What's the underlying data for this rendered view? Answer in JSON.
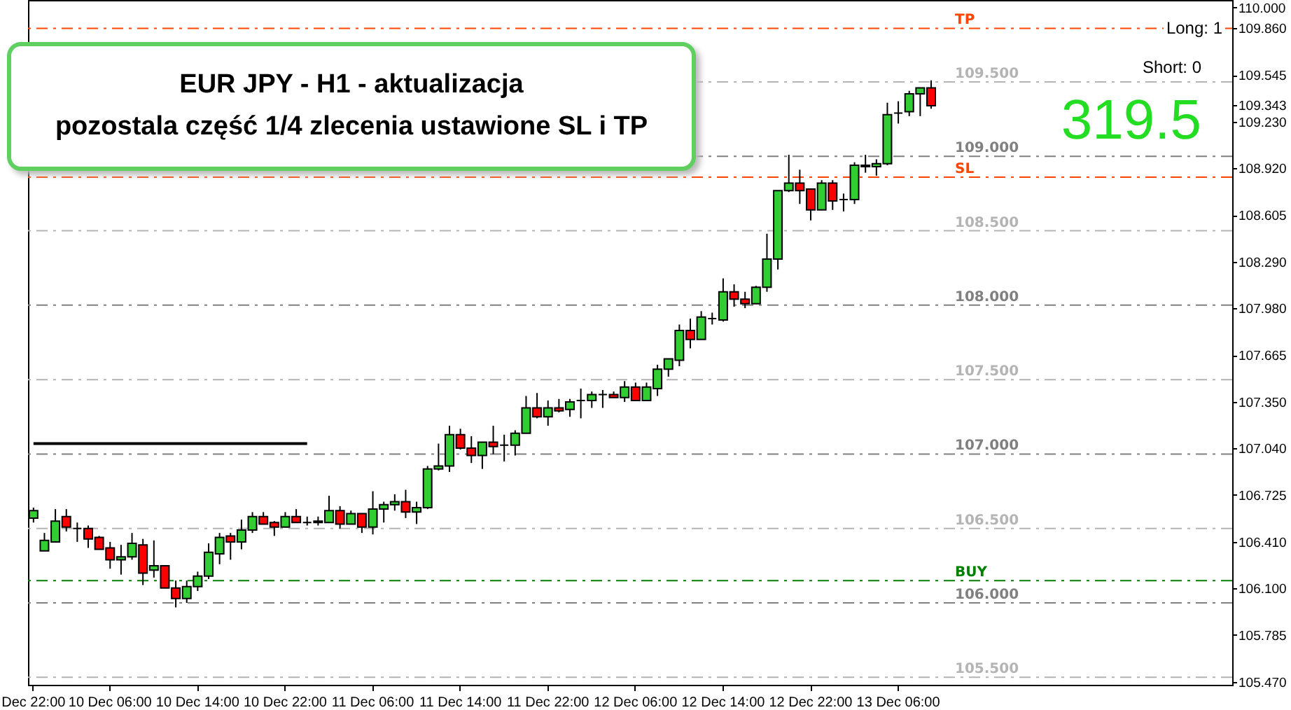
{
  "chart_data": {
    "type": "candlestick",
    "categories": [
      "Dec 22:00",
      null,
      null,
      null,
      null,
      null,
      null,
      "10 Dec 06:00",
      null,
      null,
      null,
      null,
      null,
      null,
      null,
      "10 Dec 14:00",
      null,
      null,
      null,
      null,
      null,
      null,
      null,
      "10 Dec 22:00",
      null,
      null,
      null,
      null,
      null,
      null,
      null,
      "11 Dec 06:00",
      null,
      null,
      null,
      null,
      null,
      null,
      null,
      "11 Dec 14:00",
      null,
      null,
      null,
      null,
      null,
      null,
      null,
      "11 Dec 22:00",
      null,
      null,
      null,
      null,
      null,
      null,
      null,
      "12 Dec 06:00",
      null,
      null,
      null,
      null,
      null,
      null,
      null,
      "12 Dec 14:00",
      null,
      null,
      null,
      null,
      null,
      null,
      null,
      "12 Dec 22:00",
      null,
      null,
      null,
      null,
      null,
      null,
      null,
      "13 Dec 06:00",
      null,
      null,
      null,
      null,
      null,
      null,
      null,
      null,
      null,
      null,
      null,
      null,
      null,
      null,
      null,
      null,
      null,
      null,
      null,
      null,
      null,
      null,
      null,
      null,
      null,
      null,
      null,
      null,
      null,
      null
    ],
    "ohlc": [
      [
        106.57,
        106.64,
        106.54,
        106.62
      ],
      [
        106.35,
        106.47,
        106.35,
        106.42
      ],
      [
        106.41,
        106.63,
        106.41,
        106.55
      ],
      [
        106.58,
        106.63,
        106.48,
        106.51
      ],
      [
        106.5,
        106.54,
        106.41,
        106.5
      ],
      [
        106.5,
        106.52,
        106.37,
        106.43
      ],
      [
        106.44,
        106.45,
        106.36,
        106.36
      ],
      [
        106.37,
        106.41,
        106.23,
        106.29
      ],
      [
        106.29,
        106.39,
        106.19,
        106.31
      ],
      [
        106.31,
        106.47,
        106.29,
        106.4
      ],
      [
        106.39,
        106.43,
        106.12,
        106.2
      ],
      [
        106.22,
        106.42,
        106.17,
        106.25
      ],
      [
        106.25,
        106.25,
        106.1,
        106.1
      ],
      [
        106.1,
        106.15,
        105.97,
        106.03
      ],
      [
        106.03,
        106.15,
        106.0,
        106.11
      ],
      [
        106.11,
        106.21,
        106.08,
        106.18
      ],
      [
        106.18,
        106.4,
        106.16,
        106.34
      ],
      [
        106.33,
        106.47,
        106.26,
        106.44
      ],
      [
        106.45,
        106.47,
        106.29,
        106.41
      ],
      [
        106.41,
        106.56,
        106.36,
        106.49
      ],
      [
        106.49,
        106.61,
        106.47,
        106.58
      ],
      [
        106.58,
        106.61,
        106.53,
        106.53
      ],
      [
        106.54,
        106.55,
        106.45,
        106.51
      ],
      [
        106.51,
        106.61,
        106.51,
        106.58
      ],
      [
        106.58,
        106.63,
        106.54,
        106.54
      ],
      [
        106.54,
        106.58,
        106.52,
        106.54
      ],
      [
        106.54,
        106.58,
        106.52,
        106.55
      ],
      [
        106.54,
        106.72,
        106.54,
        106.62
      ],
      [
        106.62,
        106.65,
        106.5,
        106.53
      ],
      [
        106.53,
        106.62,
        106.53,
        106.6
      ],
      [
        106.6,
        106.6,
        106.47,
        106.51
      ],
      [
        106.51,
        106.75,
        106.46,
        106.63
      ],
      [
        106.63,
        106.68,
        106.54,
        106.66
      ],
      [
        106.66,
        106.73,
        106.62,
        106.68
      ],
      [
        106.68,
        106.76,
        106.57,
        106.61
      ],
      [
        106.61,
        106.68,
        106.53,
        106.64
      ],
      [
        106.64,
        106.92,
        106.63,
        106.9
      ],
      [
        106.9,
        107.07,
        106.89,
        106.92
      ],
      [
        106.92,
        107.19,
        106.88,
        107.13
      ],
      [
        107.13,
        107.17,
        107.03,
        107.04
      ],
      [
        107.04,
        107.12,
        106.94,
        106.99
      ],
      [
        106.99,
        107.08,
        106.9,
        107.08
      ],
      [
        107.08,
        107.19,
        107.0,
        107.05
      ],
      [
        107.06,
        107.13,
        106.95,
        107.06
      ],
      [
        107.06,
        107.16,
        106.99,
        107.14
      ],
      [
        107.14,
        107.39,
        107.14,
        107.31
      ],
      [
        107.31,
        107.41,
        107.24,
        107.25
      ],
      [
        107.25,
        107.36,
        107.19,
        107.31
      ],
      [
        107.31,
        107.37,
        107.28,
        107.29
      ],
      [
        107.3,
        107.37,
        107.25,
        107.35
      ],
      [
        107.36,
        107.44,
        107.24,
        107.36
      ],
      [
        107.36,
        107.42,
        107.31,
        107.4
      ],
      [
        107.4,
        107.43,
        107.31,
        107.4
      ],
      [
        107.4,
        107.42,
        107.38,
        107.38
      ],
      [
        107.38,
        107.49,
        107.35,
        107.45
      ],
      [
        107.45,
        107.48,
        107.36,
        107.36
      ],
      [
        107.36,
        107.48,
        107.36,
        107.45
      ],
      [
        107.44,
        107.6,
        107.39,
        107.57
      ],
      [
        107.57,
        107.64,
        107.52,
        107.64
      ],
      [
        107.63,
        107.87,
        107.59,
        107.83
      ],
      [
        107.83,
        107.91,
        107.71,
        107.77
      ],
      [
        107.77,
        107.96,
        107.77,
        107.92
      ],
      [
        107.91,
        107.95,
        107.87,
        107.91
      ],
      [
        107.9,
        108.18,
        107.89,
        108.09
      ],
      [
        108.09,
        108.14,
        107.99,
        108.04
      ],
      [
        108.04,
        108.09,
        107.98,
        108.01
      ],
      [
        108.01,
        108.13,
        108.01,
        108.12
      ],
      [
        108.12,
        108.48,
        108.09,
        108.31
      ],
      [
        108.31,
        108.77,
        108.24,
        108.77
      ],
      [
        108.77,
        109.01,
        108.76,
        108.82
      ],
      [
        108.82,
        108.91,
        108.68,
        108.77
      ],
      [
        108.78,
        108.78,
        108.57,
        108.64
      ],
      [
        108.64,
        108.84,
        108.64,
        108.82
      ],
      [
        108.82,
        108.84,
        108.64,
        108.7
      ],
      [
        108.71,
        108.75,
        108.63,
        108.71
      ],
      [
        108.71,
        108.96,
        108.68,
        108.94
      ],
      [
        108.94,
        109.01,
        108.89,
        108.93
      ],
      [
        108.93,
        108.98,
        108.87,
        108.95
      ],
      [
        108.95,
        109.36,
        108.94,
        109.28
      ],
      [
        109.29,
        109.37,
        109.22,
        109.29
      ],
      [
        109.3,
        109.44,
        109.27,
        109.42
      ],
      [
        109.42,
        109.46,
        109.27,
        109.46
      ],
      [
        109.46,
        109.51,
        109.32,
        109.34
      ],
      null,
      null,
      null,
      null,
      null,
      null,
      null,
      null,
      null,
      null,
      null,
      null,
      null,
      null,
      null,
      null,
      null,
      null,
      null,
      null,
      null,
      null,
      null,
      null,
      null,
      null,
      null
    ],
    "colors": [
      "#32cd32",
      "#32cd32",
      "#32cd32",
      "#ff0000",
      "#000000",
      "#ff0000",
      "#ff0000",
      "#ff0000",
      "#32cd32",
      "#32cd32",
      "#ff0000",
      "#32cd32",
      "#ff0000",
      "#ff0000",
      "#32cd32",
      "#32cd32",
      "#32cd32",
      "#32cd32",
      "#ff0000",
      "#32cd32",
      "#32cd32",
      "#ff0000",
      "#ff0000",
      "#32cd32",
      "#ff0000",
      "#000000",
      "#32cd32",
      "#32cd32",
      "#ff0000",
      "#32cd32",
      "#ff0000",
      "#32cd32",
      "#32cd32",
      "#32cd32",
      "#ff0000",
      "#32cd32",
      "#32cd32",
      "#32cd32",
      "#32cd32",
      "#ff0000",
      "#ff0000",
      "#32cd32",
      "#ff0000",
      "#000000",
      "#32cd32",
      "#32cd32",
      "#ff0000",
      "#32cd32",
      "#ff0000",
      "#32cd32",
      "#000000",
      "#32cd32",
      "#000000",
      "#ff0000",
      "#32cd32",
      "#ff0000",
      "#32cd32",
      "#32cd32",
      "#32cd32",
      "#32cd32",
      "#ff0000",
      "#32cd32",
      "#000000",
      "#32cd32",
      "#ff0000",
      "#ff0000",
      "#32cd32",
      "#32cd32",
      "#32cd32",
      "#32cd32",
      "#ff0000",
      "#ff0000",
      "#32cd32",
      "#ff0000",
      "#000000",
      "#32cd32",
      "#ff0000",
      "#32cd32",
      "#32cd32",
      "#000000",
      "#32cd32",
      "#32cd32",
      "#ff0000",
      null,
      null,
      null,
      null,
      null,
      null,
      null,
      null,
      null,
      null,
      null,
      null,
      null,
      null,
      null,
      null,
      null,
      null,
      null,
      null,
      null,
      null,
      null,
      null,
      null,
      null,
      null
    ],
    "series": [
      {
        "type": "line",
        "color": "#000000",
        "values": [
          107.07,
          107.07,
          107.07,
          107.07,
          107.07,
          107.07,
          107.07,
          107.07,
          107.07,
          107.07,
          107.07,
          107.07,
          107.07,
          107.07,
          107.07,
          107.07,
          107.07,
          107.07,
          107.07,
          107.07,
          107.07,
          107.07,
          107.07,
          107.07,
          107.07,
          107.07,
          null,
          null,
          null,
          null,
          null,
          null,
          null,
          null,
          null,
          null,
          null,
          null,
          null,
          null,
          null,
          null,
          null,
          null,
          null,
          null,
          null,
          null,
          null,
          null,
          null,
          null,
          null,
          null,
          null,
          null,
          null,
          null,
          null,
          null,
          null,
          null,
          null,
          null,
          null,
          null,
          null,
          null,
          null,
          null,
          null,
          null,
          null,
          null,
          null,
          null,
          null,
          null,
          null,
          null,
          null,
          null,
          null,
          null,
          null,
          null,
          null,
          null,
          null,
          null,
          null,
          null,
          null,
          null,
          null,
          null,
          null,
          null,
          null,
          null,
          null,
          null,
          null,
          null,
          null,
          null,
          null,
          null,
          null,
          null
        ]
      }
    ],
    "ylim": [
      105.45,
      110.05
    ],
    "yticks": [
      {
        "value": 110,
        "label": "110.000"
      },
      {
        "value": 109.86,
        "label": "109.860"
      },
      109.545,
      {
        "value": 109.343,
        "label": "109.343"
      },
      {
        "value": 109.23,
        "label": "109.230"
      },
      {
        "value": 108.92,
        "label": "108.920"
      },
      108.605,
      {
        "value": 108.29,
        "label": "108.290"
      },
      {
        "value": 107.98,
        "label": "107.980"
      },
      107.665,
      {
        "value": 107.35,
        "label": "107.350"
      },
      {
        "value": 107.04,
        "label": "107.040"
      },
      106.725,
      {
        "value": 106.41,
        "label": "106.410"
      },
      {
        "value": 106.1,
        "label": "106.100"
      },
      105.785,
      {
        "value": 105.47,
        "label": "105.470"
      }
    ],
    "ref_lines": [
      {
        "axis": "y",
        "value": 109.86,
        "label": "TP",
        "color": "#ff4500",
        "line_style": "dashed"
      },
      {
        "axis": "y",
        "value": 108.86,
        "label": "SL",
        "color": "#ff4500",
        "line_style": "dashed"
      },
      {
        "axis": "y",
        "value": 106.15,
        "label": "BUY",
        "color": "#008000",
        "line_style": "dashed"
      },
      {
        "axis": "y",
        "value": 109.5,
        "label": "109.500",
        "color": "#b4b4b4",
        "line_style": "dashed"
      },
      {
        "axis": "y",
        "value": 109.0,
        "label": "109.000",
        "color": "#808080",
        "line_style": "dashed"
      },
      {
        "axis": "y",
        "value": 108.5,
        "label": "108.500",
        "color": "#b4b4b4",
        "line_style": "dashed"
      },
      {
        "axis": "y",
        "value": 108.0,
        "label": "108.000",
        "color": "#808080",
        "line_style": "dashed"
      },
      {
        "axis": "y",
        "value": 107.5,
        "label": "107.500",
        "color": "#b4b4b4",
        "line_style": "dashed"
      },
      {
        "axis": "y",
        "value": 107.0,
        "label": "107.000",
        "color": "#808080",
        "line_style": "dashed"
      },
      {
        "axis": "y",
        "value": 106.5,
        "label": "106.500",
        "color": "#b4b4b4",
        "line_style": "dashed"
      },
      {
        "axis": "y",
        "value": 106.0,
        "label": "106.000",
        "color": "#808080",
        "line_style": "dashed"
      },
      {
        "axis": "y",
        "value": 105.5,
        "label": "105.500",
        "color": "#b4b4b4",
        "line_style": "dashed"
      }
    ],
    "annotations": [
      "EUR JPY - H1 - aktualizacja",
      "pozostala część 1/4 zlecenia ustawione SL i TP",
      "Long: 1",
      "Short: 0",
      "319.5"
    ]
  }
}
